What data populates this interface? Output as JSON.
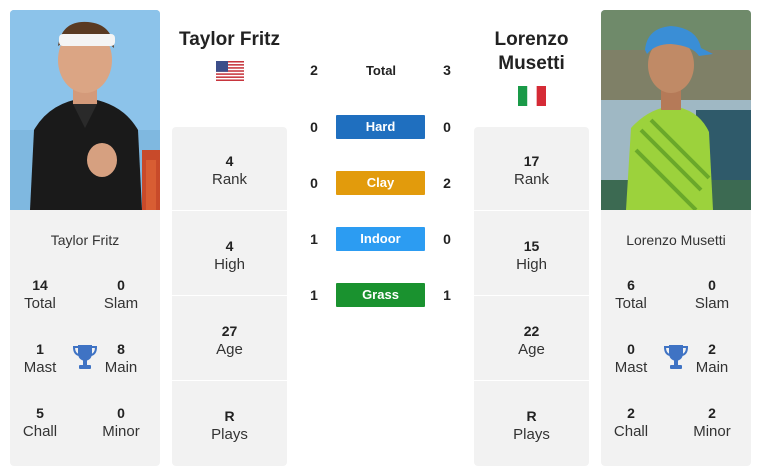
{
  "player1": {
    "name": "Taylor Fritz",
    "flag": "us-flag",
    "rank": "4",
    "rank_label": "Rank",
    "high": "4",
    "high_label": "High",
    "age": "27",
    "age_label": "Age",
    "plays": "R",
    "plays_label": "Plays",
    "card": {
      "name": "Taylor Fritz",
      "total": "14",
      "total_label": "Total",
      "slam": "0",
      "slam_label": "Slam",
      "mast": "1",
      "mast_label": "Mast",
      "main": "8",
      "main_label": "Main",
      "chall": "5",
      "chall_label": "Chall",
      "minor": "0",
      "minor_label": "Minor"
    }
  },
  "player2": {
    "name": "Lorenzo Musetti",
    "name_line1": "Lorenzo",
    "name_line2": "Musetti",
    "flag": "italy-flag",
    "rank": "17",
    "rank_label": "Rank",
    "high": "15",
    "high_label": "High",
    "age": "22",
    "age_label": "Age",
    "plays": "R",
    "plays_label": "Plays",
    "card": {
      "name": "Lorenzo Musetti",
      "total": "6",
      "total_label": "Total",
      "slam": "0",
      "slam_label": "Slam",
      "mast": "0",
      "mast_label": "Mast",
      "main": "2",
      "main_label": "Main",
      "chall": "2",
      "chall_label": "Chall",
      "minor": "2",
      "minor_label": "Minor"
    }
  },
  "h2h": {
    "total": {
      "label": "Total",
      "p1": "2",
      "p2": "3"
    },
    "hard": {
      "label": "Hard",
      "p1": "0",
      "p2": "0",
      "color": "#1f6fbf"
    },
    "clay": {
      "label": "Clay",
      "p1": "0",
      "p2": "2",
      "color": "#e29b0c"
    },
    "indoor": {
      "label": "Indoor",
      "p1": "1",
      "p2": "0",
      "color": "#2c9cf2"
    },
    "grass": {
      "label": "Grass",
      "p1": "1",
      "p2": "1",
      "color": "#1a922f"
    }
  },
  "icons": {
    "trophy": "trophy-icon",
    "trophy_color": "#3f73c4"
  }
}
